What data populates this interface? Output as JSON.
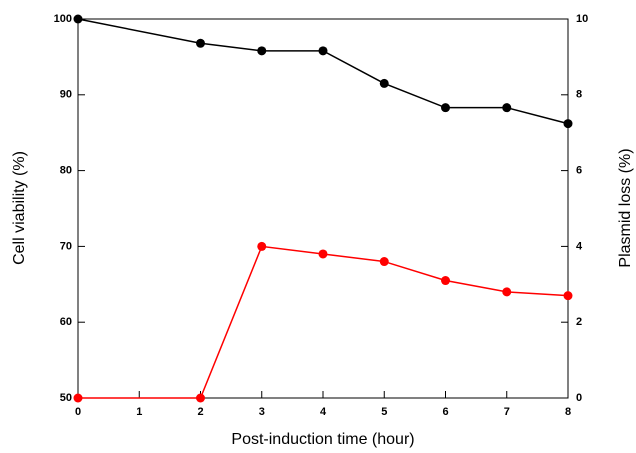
{
  "chart_data": {
    "type": "line",
    "x_label": "Post-induction time (hour)",
    "y_label": "Cell viability (%)",
    "y2_label": "Plasmid loss (%)",
    "x": [
      0,
      2,
      3,
      4,
      5,
      6,
      7,
      8
    ],
    "series": [
      {
        "name": "Cell viability",
        "color": "#000000",
        "values": [
          100,
          96.8,
          95.8,
          95.8,
          91.5,
          88.3,
          88.3,
          86.2
        ]
      },
      {
        "name": "Plasmid loss",
        "color": "#ff0000",
        "axis": "y2",
        "values": [
          0,
          0,
          4.0,
          3.8,
          3.6,
          3.1,
          2.8,
          2.7
        ]
      }
    ],
    "xlim": [
      0,
      8
    ],
    "xticks": [
      0,
      1,
      2,
      3,
      4,
      5,
      6,
      7,
      8
    ],
    "ylim": [
      50,
      100
    ],
    "yticks": [
      50,
      60,
      70,
      80,
      90,
      100
    ],
    "y2lim": [
      0,
      10
    ],
    "y2ticks": [
      0,
      2,
      4,
      6,
      8,
      10
    ]
  }
}
